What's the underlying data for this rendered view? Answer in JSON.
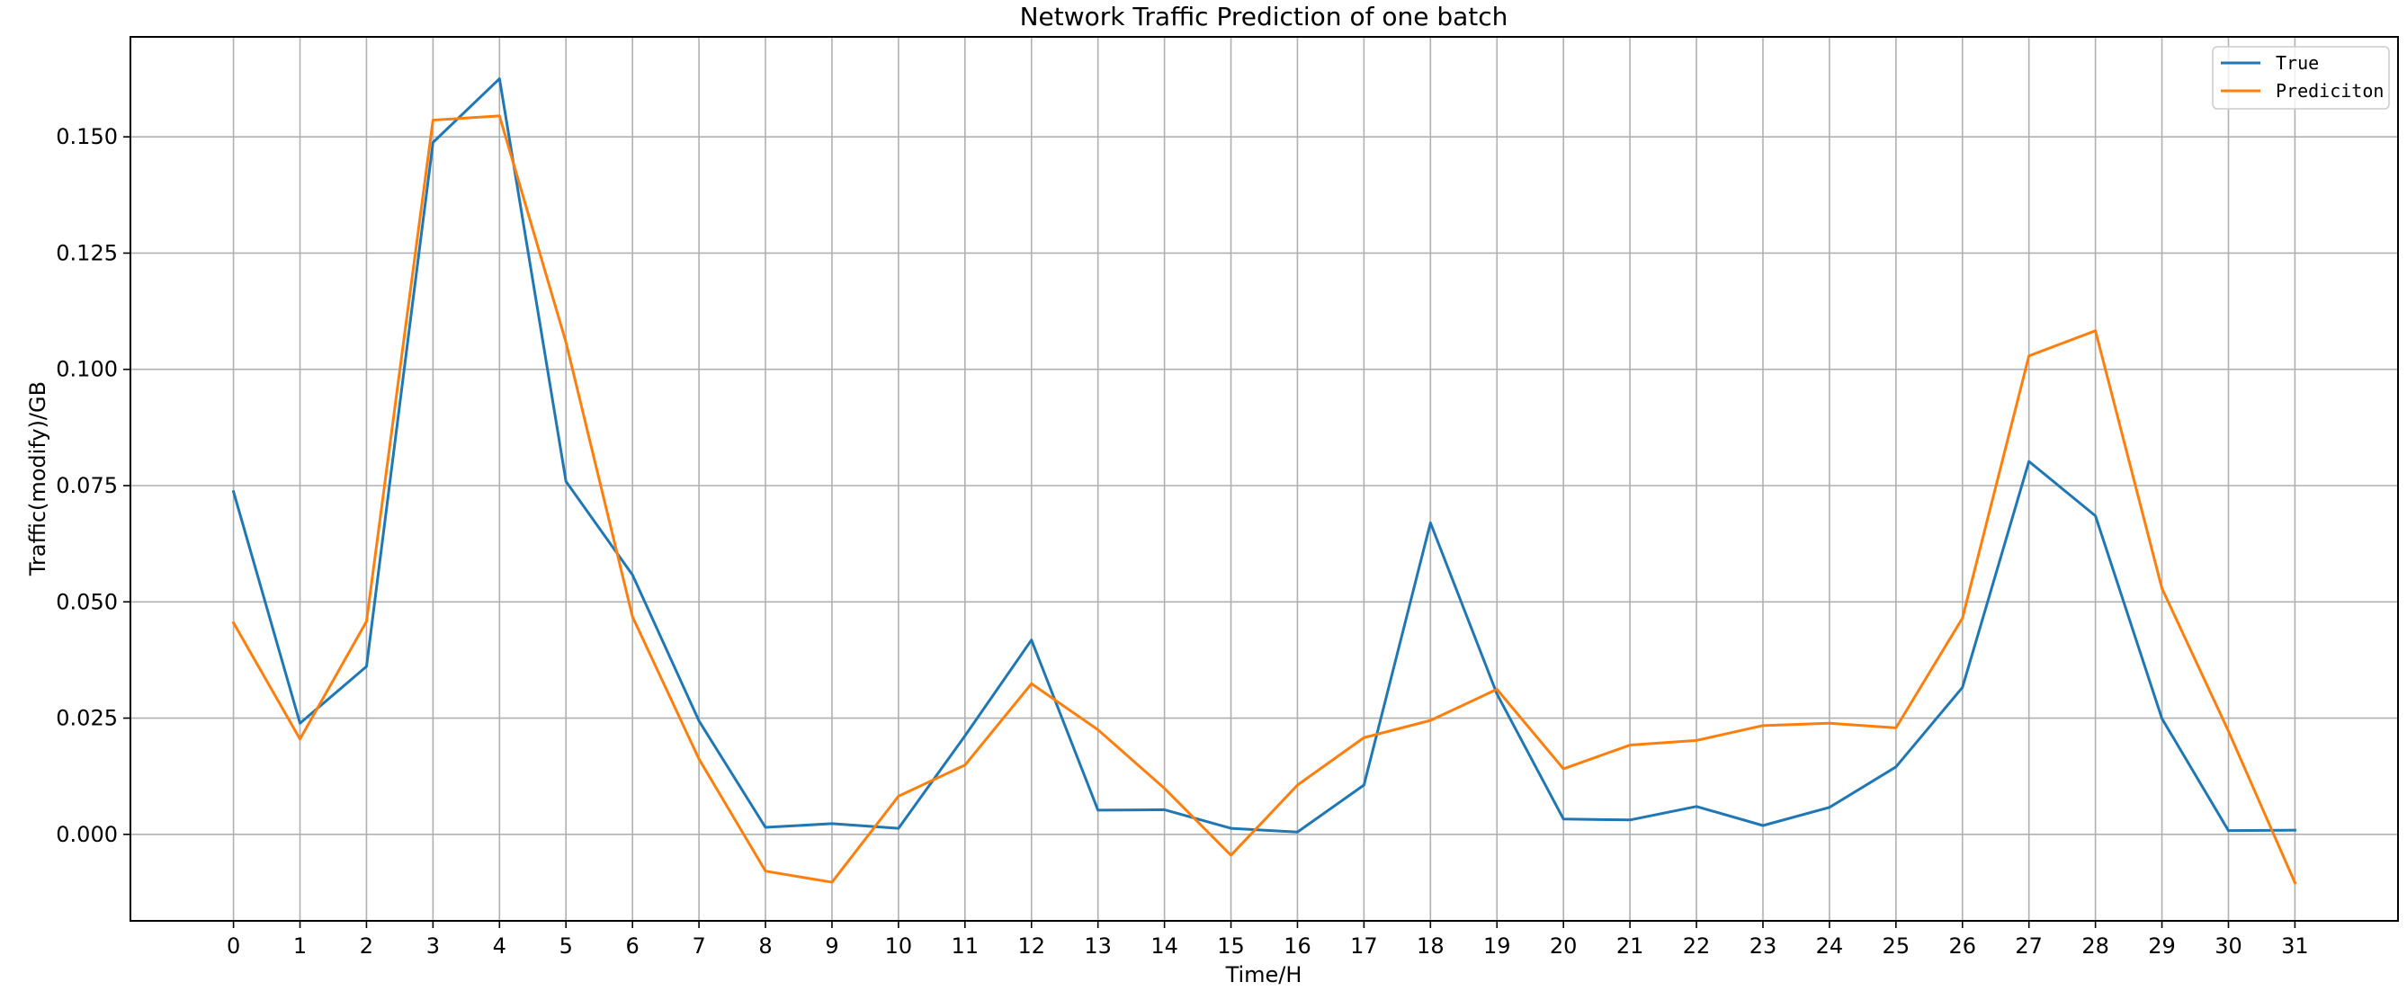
{
  "chart_data": {
    "type": "line",
    "title": "Network Traffic Prediction of one batch",
    "xlabel": "Time/H",
    "ylabel": "Traffic(modify)/GB",
    "x": [
      0,
      1,
      2,
      3,
      4,
      5,
      6,
      7,
      8,
      9,
      10,
      11,
      12,
      13,
      14,
      15,
      16,
      17,
      18,
      19,
      20,
      21,
      22,
      23,
      24,
      25,
      26,
      27,
      28,
      29,
      30,
      31
    ],
    "xticks": [
      "0",
      "1",
      "2",
      "3",
      "4",
      "5",
      "6",
      "7",
      "8",
      "9",
      "10",
      "11",
      "12",
      "13",
      "14",
      "15",
      "16",
      "17",
      "18",
      "19",
      "20",
      "21",
      "22",
      "23",
      "24",
      "25",
      "26",
      "27",
      "28",
      "29",
      "30",
      "31"
    ],
    "yticks": [
      "0.000",
      "0.025",
      "0.050",
      "0.075",
      "0.100",
      "0.125",
      "0.150"
    ],
    "xlim": [
      -1.55,
      32.55
    ],
    "ylim": [
      -0.0186,
      0.1715
    ],
    "grid": true,
    "legend_position": "top-right",
    "series": [
      {
        "name": "True",
        "color": "#1f77b4",
        "values": [
          0.0737,
          0.0239,
          0.0361,
          0.1488,
          0.1625,
          0.0759,
          0.0558,
          0.0244,
          0.0015,
          0.0023,
          0.0013,
          0.0212,
          0.0418,
          0.0052,
          0.0053,
          0.0013,
          0.0005,
          0.0106,
          0.067,
          0.0302,
          0.0033,
          0.0031,
          0.006,
          0.0019,
          0.0058,
          0.0145,
          0.0316,
          0.0802,
          0.0685,
          0.0249,
          0.0008,
          0.0009
        ]
      },
      {
        "name": "Prediciton",
        "color": "#ff7f0e",
        "values": [
          0.0455,
          0.0205,
          0.0458,
          0.1536,
          0.1545,
          0.1058,
          0.0468,
          0.0162,
          -0.0079,
          -0.0103,
          0.0082,
          0.0149,
          0.0324,
          0.0225,
          0.0099,
          -0.0045,
          0.0106,
          0.0208,
          0.0245,
          0.0312,
          0.0141,
          0.0192,
          0.0202,
          0.0234,
          0.0239,
          0.0229,
          0.0465,
          0.1029,
          0.1083,
          0.0529,
          0.0222,
          -0.0104
        ]
      }
    ]
  }
}
